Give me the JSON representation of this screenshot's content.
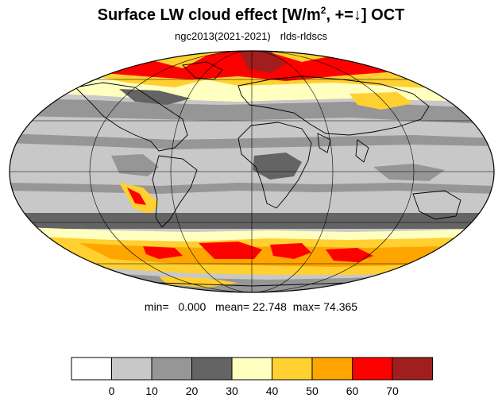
{
  "title": {
    "main": "Surface LW cloud effect [W/m",
    "superscript": "2",
    "suffix": ", +=↓]  OCT"
  },
  "subtitle": {
    "case": "ngc2013(2021-2021)",
    "variable": "rlds-rldscs"
  },
  "stats": {
    "min_label": "min=",
    "min_value": "0.000",
    "mean_label": "mean=",
    "mean_value": "22.748",
    "max_label": "max=",
    "max_value": "74.365"
  },
  "colorbar": {
    "colors": [
      "#ffffff",
      "#c8c8c8",
      "#969696",
      "#646464",
      "#ffffc0",
      "#ffd030",
      "#ffa500",
      "#ff0000",
      "#a01e1e"
    ],
    "tick_labels": [
      "0",
      "10",
      "20",
      "30",
      "40",
      "50",
      "60",
      "70"
    ]
  },
  "map": {
    "projection": "Mollweide",
    "ocean_base_color": "#c8c8c8",
    "coastline_color": "#000000",
    "graticule_color": "#000000"
  }
}
